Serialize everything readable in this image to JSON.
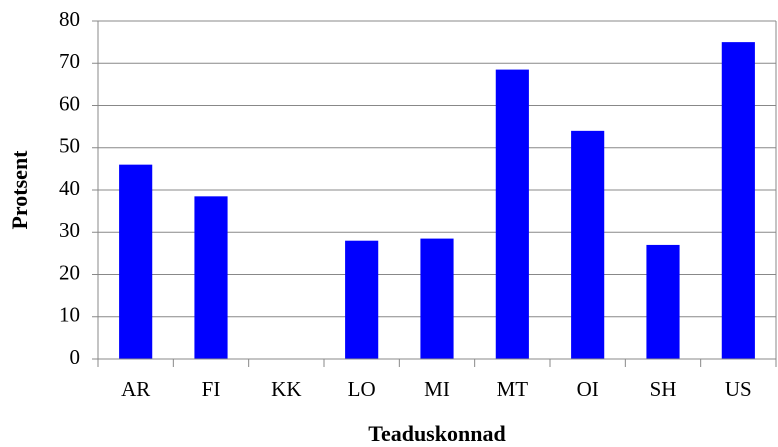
{
  "chart_data": {
    "type": "bar",
    "x_label": "Teaduskonnad",
    "y_label": "Protsent",
    "categories": [
      "AR",
      "FI",
      "KK",
      "LO",
      "MI",
      "MT",
      "OI",
      "SH",
      "US"
    ],
    "values": [
      46,
      38.5,
      0,
      28,
      28.5,
      68.5,
      54,
      27,
      75
    ],
    "color": "#0000ff",
    "ylim": [
      0,
      80
    ],
    "yticks": [
      0,
      10,
      20,
      30,
      40,
      50,
      60,
      70,
      80
    ],
    "grid": true
  }
}
